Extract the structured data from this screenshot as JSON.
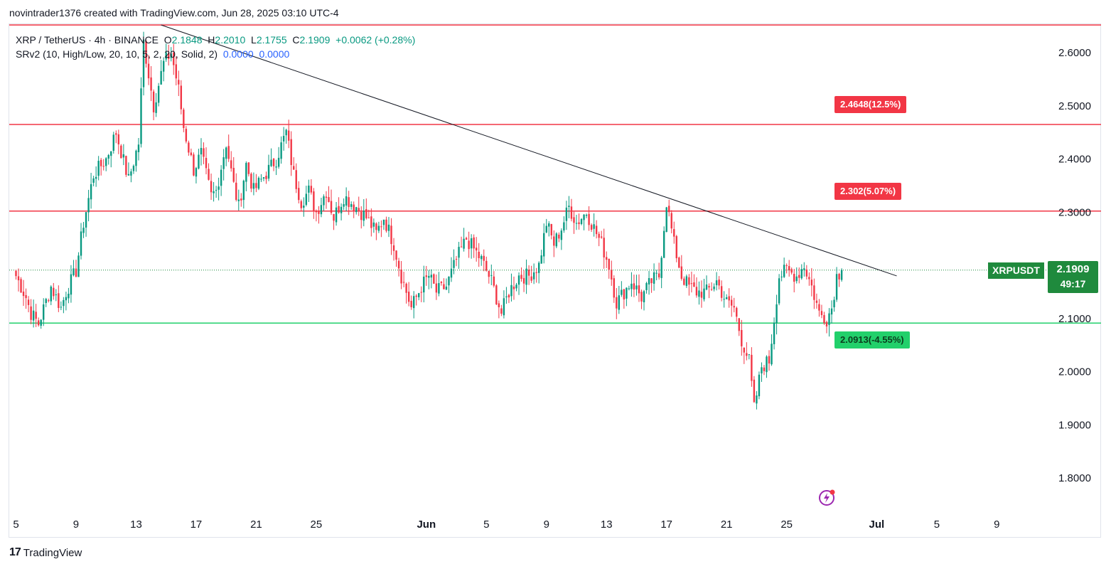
{
  "header": {
    "attribution": "novintrader1376 created with TradingView.com, Jun 28, 2025 03:10 UTC-4"
  },
  "legend": {
    "symbol_line": "XRP / TetherUS · 4h · BINANCE",
    "o_label": "O",
    "o_value": "2.1848",
    "h_label": "H",
    "h_value": "2.2010",
    "l_label": "L",
    "l_value": "2.1755",
    "c_label": "C",
    "c_value": "2.1909",
    "change": "+0.0062 (+0.28%)",
    "indicator": "SRv2 (10, High/Low, 20, 10, 5, 2, 20, Solid, 2)",
    "ind_val1": "0.0000",
    "ind_val2": "0.0000"
  },
  "current_price": {
    "symbol": "XRPUSDT",
    "price": "2.1909",
    "countdown": "49:17"
  },
  "level_labels": [
    {
      "text": "2.4648(12.5%)",
      "price": 2.4648
    },
    {
      "text": "2.302(5.07%)",
      "price": 2.302
    },
    {
      "text": "2.0913(-4.55%)",
      "price": 2.0913
    }
  ],
  "footer": {
    "brand": "TradingView"
  },
  "colors": {
    "up": "#089981",
    "down": "#f23645",
    "resistance": "#f23645",
    "support": "#22d06b",
    "trendline": "#131722",
    "axis_text": "#131722"
  },
  "chart_data": {
    "type": "candlestick",
    "title": "XRP / TetherUS · 4h · BINANCE",
    "ylim": [
      1.72,
      2.66
    ],
    "y_ticks": [
      1.8,
      1.9,
      2.0,
      2.1,
      2.2,
      2.3,
      2.4,
      2.5,
      2.6
    ],
    "y_tick_labels": [
      "1.8000",
      "1.9000",
      "2.0000",
      "2.1000",
      "2.2000",
      "2.3000",
      "2.4000",
      "2.5000",
      "2.6000"
    ],
    "x_ticks": [
      {
        "label": "5",
        "bar": 0
      },
      {
        "label": "9",
        "bar": 24
      },
      {
        "label": "13",
        "bar": 48
      },
      {
        "label": "17",
        "bar": 72
      },
      {
        "label": "21",
        "bar": 96
      },
      {
        "label": "25",
        "bar": 120
      },
      {
        "label": "Jun",
        "bar": 164
      },
      {
        "label": "5",
        "bar": 188
      },
      {
        "label": "9",
        "bar": 212
      },
      {
        "label": "13",
        "bar": 236
      },
      {
        "label": "17",
        "bar": 260
      },
      {
        "label": "21",
        "bar": 284
      },
      {
        "label": "25",
        "bar": 308
      },
      {
        "label": "Jul",
        "bar": 344
      },
      {
        "label": "5",
        "bar": 368
      },
      {
        "label": "9",
        "bar": 392
      }
    ],
    "horizontal_levels": [
      {
        "price": 2.652,
        "role": "resistance"
      },
      {
        "price": 2.4648,
        "role": "resistance"
      },
      {
        "price": 2.302,
        "role": "resistance"
      },
      {
        "price": 2.0913,
        "role": "support"
      }
    ],
    "trendline": [
      {
        "bar": 58,
        "price": 2.652
      },
      {
        "bar": 352,
        "price": 2.18
      }
    ],
    "current_price_line": 2.1909,
    "anchors": [
      [
        0,
        2.18
      ],
      [
        4,
        2.14
      ],
      [
        6,
        2.11
      ],
      [
        9,
        2.09
      ],
      [
        14,
        2.16
      ],
      [
        18,
        2.12
      ],
      [
        20,
        2.15
      ],
      [
        24,
        2.19
      ],
      [
        27,
        2.28
      ],
      [
        31,
        2.37
      ],
      [
        36,
        2.4
      ],
      [
        40,
        2.45
      ],
      [
        45,
        2.36
      ],
      [
        49,
        2.43
      ],
      [
        51,
        2.62
      ],
      [
        55,
        2.5
      ],
      [
        59,
        2.58
      ],
      [
        62,
        2.6
      ],
      [
        65,
        2.53
      ],
      [
        67,
        2.46
      ],
      [
        71,
        2.38
      ],
      [
        74,
        2.41
      ],
      [
        78,
        2.33
      ],
      [
        80,
        2.34
      ],
      [
        84,
        2.43
      ],
      [
        87,
        2.35
      ],
      [
        89,
        2.31
      ],
      [
        92,
        2.39
      ],
      [
        95,
        2.34
      ],
      [
        98,
        2.36
      ],
      [
        104,
        2.4
      ],
      [
        108,
        2.45
      ],
      [
        111,
        2.37
      ],
      [
        114,
        2.32
      ],
      [
        117,
        2.34
      ],
      [
        120,
        2.3
      ],
      [
        124,
        2.34
      ],
      [
        127,
        2.29
      ],
      [
        131,
        2.33
      ],
      [
        136,
        2.31
      ],
      [
        140,
        2.29
      ],
      [
        144,
        2.26
      ],
      [
        147,
        2.29
      ],
      [
        151,
        2.24
      ],
      [
        154,
        2.18
      ],
      [
        158,
        2.12
      ],
      [
        162,
        2.16
      ],
      [
        165,
        2.18
      ],
      [
        168,
        2.15
      ],
      [
        172,
        2.16
      ],
      [
        176,
        2.21
      ],
      [
        180,
        2.25
      ],
      [
        183,
        2.23
      ],
      [
        186,
        2.21
      ],
      [
        190,
        2.17
      ],
      [
        194,
        2.11
      ],
      [
        197,
        2.15
      ],
      [
        201,
        2.18
      ],
      [
        205,
        2.18
      ],
      [
        209,
        2.2
      ],
      [
        212,
        2.28
      ],
      [
        215,
        2.24
      ],
      [
        218,
        2.27
      ],
      [
        221,
        2.31
      ],
      [
        224,
        2.28
      ],
      [
        228,
        2.3
      ],
      [
        231,
        2.27
      ],
      [
        234,
        2.24
      ],
      [
        237,
        2.2
      ],
      [
        240,
        2.13
      ],
      [
        243,
        2.15
      ],
      [
        246,
        2.17
      ],
      [
        250,
        2.14
      ],
      [
        254,
        2.17
      ],
      [
        257,
        2.18
      ],
      [
        260,
        2.32
      ],
      [
        263,
        2.24
      ],
      [
        266,
        2.18
      ],
      [
        269,
        2.16
      ],
      [
        272,
        2.15
      ],
      [
        276,
        2.15
      ],
      [
        280,
        2.17
      ],
      [
        284,
        2.13
      ],
      [
        287,
        2.12
      ],
      [
        290,
        2.06
      ],
      [
        293,
        2.02
      ],
      [
        295,
        1.93
      ],
      [
        298,
        2.01
      ],
      [
        301,
        2.02
      ],
      [
        303,
        2.1
      ],
      [
        305,
        2.18
      ],
      [
        308,
        2.19
      ],
      [
        312,
        2.18
      ],
      [
        315,
        2.2
      ],
      [
        318,
        2.16
      ],
      [
        321,
        2.11
      ],
      [
        324,
        2.1
      ],
      [
        326,
        2.12
      ],
      [
        328,
        2.18
      ],
      [
        330,
        2.1909
      ]
    ]
  }
}
